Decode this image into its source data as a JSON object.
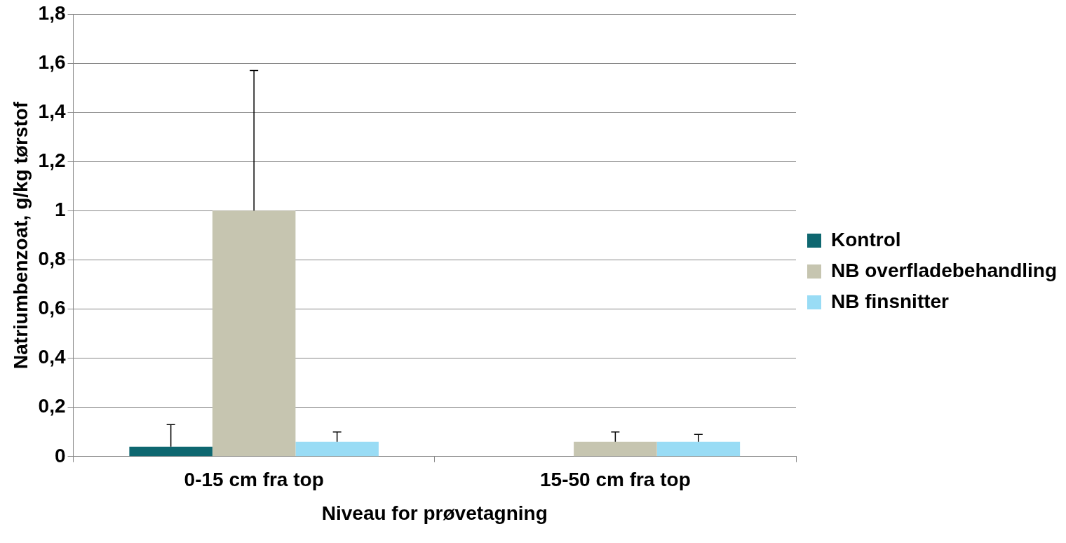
{
  "chart_data": {
    "type": "bar",
    "xlabel": "Niveau for prøvetagning",
    "ylabel": "Natriumbenzoat, g/kg tørstof",
    "categories": [
      "0-15 cm fra top",
      "15-50 cm fra top"
    ],
    "series": [
      {
        "name": "Kontrol",
        "color": "#0e6770",
        "values": [
          0.04,
          0
        ],
        "errors": [
          [
            0.04,
            0.13
          ],
          null
        ]
      },
      {
        "name": "NB overfladebehandling",
        "color": "#c6c5b0",
        "values": [
          1.0,
          0.06
        ],
        "errors": [
          [
            1.0,
            1.57
          ],
          [
            0.06,
            0.1
          ]
        ]
      },
      {
        "name": "NB finsnitter",
        "color": "#99dcf5",
        "values": [
          0.06,
          0.06
        ],
        "errors": [
          [
            0.06,
            0.1
          ],
          [
            0.06,
            0.09
          ]
        ]
      }
    ],
    "ylim": [
      0,
      1.8
    ],
    "yticks": [
      0,
      {
        "value": 0.2,
        "label": "0,2"
      },
      {
        "value": 0.4,
        "label": "0,4"
      },
      {
        "value": 0.6,
        "label": "0,6"
      },
      {
        "value": 0.8,
        "label": "0,8"
      },
      1,
      {
        "value": 1.2,
        "label": "1,2"
      },
      {
        "value": 1.4,
        "label": "1,4"
      },
      {
        "value": 1.6,
        "label": "1,6"
      },
      {
        "value": 1.8,
        "label": "1,8"
      }
    ],
    "grid": "y",
    "legend": "right"
  }
}
